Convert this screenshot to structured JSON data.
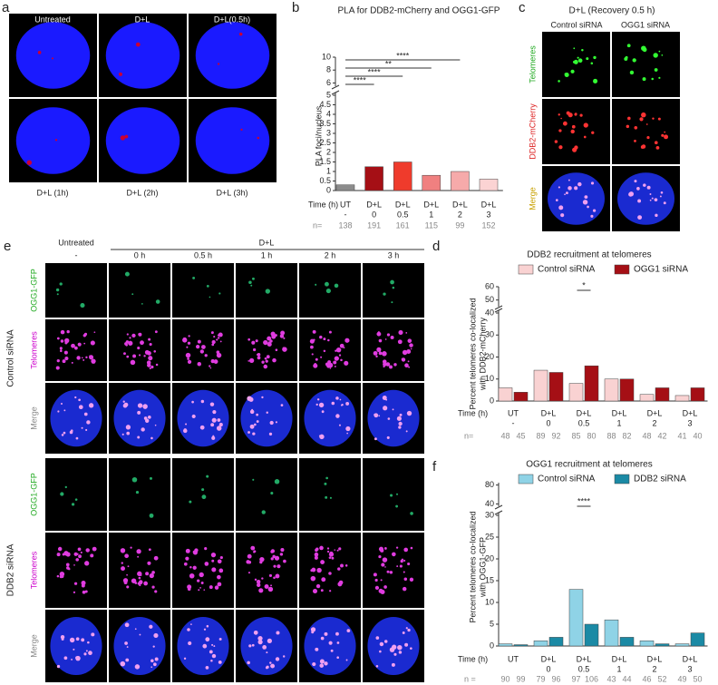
{
  "panel_a": {
    "letter": "a",
    "labels": [
      "Untreated",
      "D+L",
      "D+L(0.5h)",
      "D+L (1h)",
      "D+L (2h)",
      "D+L (3h)"
    ]
  },
  "panel_c": {
    "letter": "c",
    "title": "D+L (Recovery 0.5 h)",
    "columns": [
      "Control siRNA",
      "OGG1 siRNA"
    ],
    "rows": [
      "Telomeres",
      "DDB2-mCherry",
      "Merge"
    ]
  },
  "panel_e": {
    "letter": "e",
    "header_groups": [
      "Untreated",
      "D+L"
    ],
    "columns": [
      "-",
      "0 h",
      "0.5 h",
      "1 h",
      "2 h",
      "3 h"
    ],
    "groups": [
      "Control siRNA",
      "DDB2 siRNA"
    ],
    "rows": [
      "OGG1-GFP",
      "Telomeres",
      "Merge"
    ]
  },
  "chart_data": [
    {
      "type": "bar",
      "letter": "b",
      "title": "PLA for DDB2-mCherry and OGG1-GFP",
      "ylabel": [
        "PLA foci/nucleus"
      ],
      "row_label": "Time (h)",
      "n_label": "n=",
      "categories": [
        "UT",
        "D+L",
        "D+L",
        "D+L",
        "D+L",
        "D+L"
      ],
      "subcategories": [
        "-",
        "0",
        "0.5",
        "1",
        "2",
        "3"
      ],
      "n": [
        138,
        191,
        161,
        115,
        99,
        152
      ],
      "series": [
        {
          "values": [
            0.3,
            1.25,
            1.5,
            0.8,
            1.0,
            0.6
          ],
          "colors": [
            "#8c8c8c",
            "#a50f15",
            "#ef3b2c",
            "#f08080",
            "#f6aaaa",
            "#fbd3d3"
          ]
        }
      ],
      "ylim": [
        0,
        5
      ],
      "yticks": [
        0,
        0.5,
        1,
        1.5,
        2,
        2.5,
        3,
        3.5,
        4,
        4.5,
        5
      ],
      "ylim_upper": [
        5.5,
        10
      ],
      "yticks_upper": [
        6,
        8,
        10
      ],
      "significance": [
        {
          "label": "****",
          "from": 0,
          "to": 4
        },
        {
          "label": "**",
          "from": 0,
          "to": 3
        },
        {
          "label": "****",
          "from": 0,
          "to": 2
        },
        {
          "label": "****",
          "from": 0,
          "to": 1
        }
      ]
    },
    {
      "type": "bar",
      "letter": "d",
      "title": "DDB2 recruitment at telomeres",
      "ylabel": [
        "Percent telomeres co-localized",
        "with DDB2-mCherry"
      ],
      "row_label": "Time (h)",
      "n_label": "n=",
      "categories": [
        "UT",
        "D+L",
        "D+L",
        "D+L",
        "D+L",
        "D+L"
      ],
      "subcategories": [
        "-",
        "0",
        "0.5",
        "1",
        "2",
        "3"
      ],
      "n": [
        48,
        45,
        89,
        92,
        85,
        80,
        88,
        82,
        48,
        42,
        41,
        40
      ],
      "series": [
        {
          "name": "Control siRNA",
          "color": "#f9d2d2",
          "values": [
            6,
            14,
            8,
            10,
            3,
            2.5
          ]
        },
        {
          "name": "OGG1 siRNA",
          "color": "#a50f15",
          "values": [
            4,
            13,
            16,
            10,
            6,
            6
          ]
        }
      ],
      "ylim": [
        0,
        40
      ],
      "yticks": [
        0,
        10,
        20,
        30,
        40
      ],
      "ylim_upper": [
        45,
        60
      ],
      "yticks_upper": [
        50,
        60
      ],
      "significance": [
        {
          "label": "*",
          "category": 2
        }
      ]
    },
    {
      "type": "bar",
      "letter": "f",
      "title": "OGG1 recruitment at telomeres",
      "ylabel": [
        "Percent telomeres co-localized",
        "with OGG1-GFP"
      ],
      "row_label": "Time (h)",
      "n_label": "n =",
      "categories": [
        "UT",
        "D+L",
        "D+L",
        "D+L",
        "D+L",
        "D+L"
      ],
      "subcategories": [
        "",
        "0",
        "0.5",
        "1",
        "2",
        "3"
      ],
      "n": [
        90,
        99,
        79,
        96,
        97,
        106,
        43,
        44,
        46,
        52,
        49,
        50
      ],
      "series": [
        {
          "name": "Control siRNA",
          "color": "#8fd3e6",
          "values": [
            0.5,
            1.2,
            13,
            6,
            1.2,
            0.5
          ]
        },
        {
          "name": "DDB2 siRNA",
          "color": "#1b8aa5",
          "values": [
            0.3,
            2,
            5,
            2,
            0.5,
            3
          ]
        }
      ],
      "ylim": [
        0,
        30
      ],
      "yticks": [
        0,
        5,
        10,
        15,
        20,
        25,
        30
      ],
      "ylim_upper": [
        35,
        85
      ],
      "yticks_upper": [
        40,
        80
      ],
      "significance": [
        {
          "label": "****",
          "category": 2
        }
      ]
    }
  ]
}
